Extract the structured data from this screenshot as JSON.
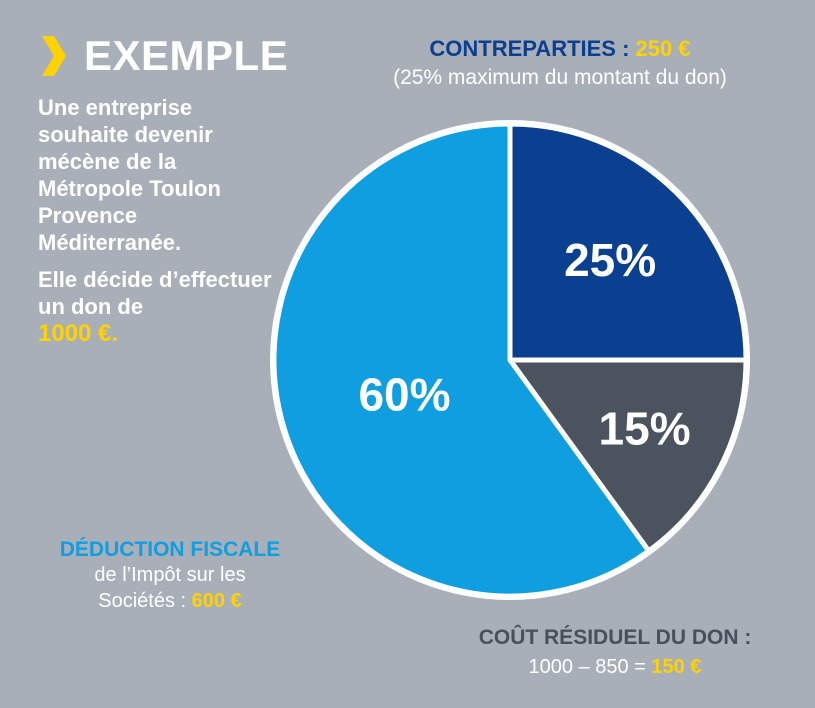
{
  "heading": {
    "title": "EXEMPLE",
    "chevron_icon": "chevron-right-icon",
    "chevron_color": "#ffd200"
  },
  "intro": {
    "line1": "Une entreprise souhaite devenir mécène de la Métropole Toulon Provence Méditerranée.",
    "line2": "Elle décide d’effectuer un don de",
    "amount": "1000 €."
  },
  "contreparties": {
    "title": "CONTREPARTIES :",
    "amount": "250 €",
    "subtitle": "(25% maximum du montant du don)"
  },
  "deduction": {
    "title": "DÉDUCTION FISCALE",
    "line1": "de l’Impôt sur les",
    "line2": "Sociétés :",
    "amount": "600 €"
  },
  "cout": {
    "title": "COÛT RÉSIDUEL DU DON :",
    "line": "1000 – 850 =",
    "amount": "150 €"
  },
  "chart_data": {
    "type": "pie",
    "slices": [
      {
        "label": "25%",
        "value": 25,
        "color": "#0b3f8f"
      },
      {
        "label": "15%",
        "value": 15,
        "color": "#4b545e"
      },
      {
        "label": "60%",
        "value": 60,
        "color": "#0f9ee0"
      }
    ],
    "start": "12 o'clock",
    "direction": "clockwise",
    "stroke_color": "#ffffff"
  }
}
